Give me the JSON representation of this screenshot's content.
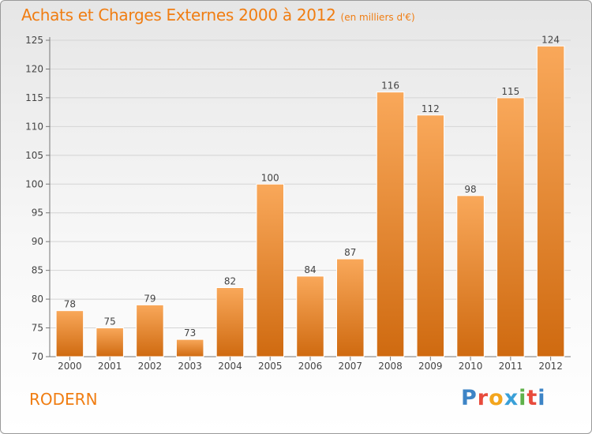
{
  "chart_data": {
    "type": "bar",
    "title": "Achats et Charges Externes 2000 à 2012",
    "unit_note": "(en milliers d'€)",
    "categories": [
      "2000",
      "2001",
      "2002",
      "2003",
      "2004",
      "2005",
      "2006",
      "2007",
      "2008",
      "2009",
      "2010",
      "2011",
      "2012"
    ],
    "values": [
      78,
      75,
      79,
      73,
      82,
      100,
      84,
      87,
      116,
      112,
      98,
      115,
      124
    ],
    "ylim": [
      70,
      125
    ],
    "yticks": [
      70,
      75,
      80,
      85,
      90,
      95,
      100,
      105,
      110,
      115,
      120,
      125
    ],
    "grid": true,
    "colors": {
      "bar_light": "#f9a85a",
      "bar_dark": "#cf6a10",
      "text": "#f07d12",
      "grid": "#d4d4d4"
    }
  },
  "footer": {
    "place": "RODERN",
    "logo_letters": [
      "P",
      "r",
      "o",
      "x",
      "i",
      "t",
      "i"
    ]
  }
}
